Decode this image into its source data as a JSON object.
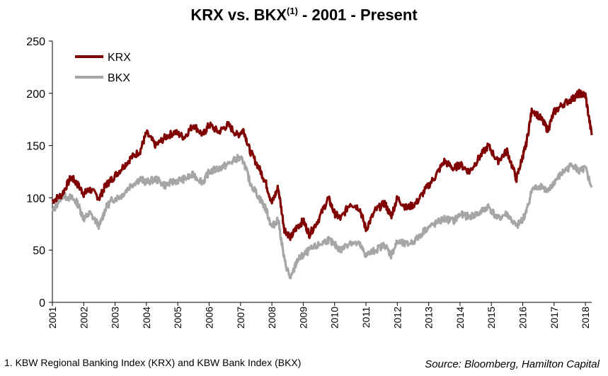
{
  "title": {
    "main": "KRX vs. BKX",
    "superscript": "(1)",
    "suffix": " - 2001 - Present"
  },
  "footnote": "1. KBW Regional Banking Index (KRX) and KBW Bank Index (BKX)",
  "source": "Source: Bloomberg, Hamilton Capital",
  "colors": {
    "KRX": "#800000",
    "BKX": "#a6a6a6",
    "axis": "#000000"
  },
  "chart_data": {
    "type": "line",
    "title": "KRX vs. BKX(1) - 2001 - Present",
    "xlabel": "",
    "ylabel": "",
    "ylim": [
      0,
      250
    ],
    "xlim": [
      2001,
      2018.2
    ],
    "y_ticks": [
      0,
      50,
      100,
      150,
      200,
      250
    ],
    "x_ticks": [
      "2001",
      "2002",
      "2003",
      "2004",
      "2005",
      "2006",
      "2007",
      "2008",
      "2009",
      "2010",
      "2011",
      "2012",
      "2013",
      "2014",
      "2015",
      "2016",
      "2017",
      "2018"
    ],
    "grid": false,
    "legend_position": "top-left",
    "series": [
      {
        "name": "KRX",
        "x": [
          2001.0,
          2001.3,
          2001.6,
          2001.8,
          2002.0,
          2002.2,
          2002.5,
          2002.7,
          2002.9,
          2003.2,
          2003.5,
          2003.8,
          2004.0,
          2004.3,
          2004.6,
          2004.9,
          2005.2,
          2005.5,
          2005.8,
          2006.0,
          2006.3,
          2006.6,
          2006.9,
          2007.1,
          2007.3,
          2007.6,
          2007.8,
          2008.0,
          2008.2,
          2008.4,
          2008.6,
          2008.8,
          2009.0,
          2009.2,
          2009.5,
          2009.8,
          2010.0,
          2010.2,
          2010.5,
          2010.8,
          2011.0,
          2011.3,
          2011.6,
          2011.8,
          2012.0,
          2012.3,
          2012.6,
          2012.9,
          2013.2,
          2013.5,
          2013.8,
          2014.0,
          2014.3,
          2014.6,
          2014.9,
          2015.2,
          2015.5,
          2015.8,
          2016.0,
          2016.1,
          2016.3,
          2016.6,
          2016.8,
          2017.0,
          2017.3,
          2017.6,
          2017.8,
          2018.0,
          2018.2
        ],
        "y": [
          97,
          103,
          120,
          113,
          104,
          108,
          100,
          112,
          118,
          128,
          138,
          145,
          162,
          150,
          158,
          163,
          158,
          170,
          160,
          170,
          163,
          170,
          160,
          165,
          145,
          128,
          115,
          95,
          110,
          70,
          62,
          72,
          78,
          65,
          80,
          100,
          85,
          80,
          95,
          90,
          70,
          88,
          95,
          82,
          100,
          90,
          95,
          108,
          120,
          135,
          128,
          132,
          125,
          138,
          150,
          135,
          145,
          118,
          140,
          150,
          185,
          175,
          165,
          182,
          190,
          195,
          200,
          198,
          160
        ]
      },
      {
        "name": "BKX",
        "x": [
          2001.0,
          2001.3,
          2001.6,
          2001.8,
          2002.0,
          2002.2,
          2002.5,
          2002.7,
          2002.9,
          2003.2,
          2003.5,
          2003.8,
          2004.0,
          2004.3,
          2004.6,
          2004.9,
          2005.2,
          2005.5,
          2005.8,
          2006.0,
          2006.3,
          2006.6,
          2006.9,
          2007.1,
          2007.3,
          2007.6,
          2007.8,
          2008.0,
          2008.2,
          2008.4,
          2008.6,
          2008.8,
          2009.0,
          2009.2,
          2009.5,
          2009.8,
          2010.0,
          2010.2,
          2010.5,
          2010.8,
          2011.0,
          2011.3,
          2011.6,
          2011.8,
          2012.0,
          2012.3,
          2012.6,
          2012.9,
          2013.2,
          2013.5,
          2013.8,
          2014.0,
          2014.3,
          2014.6,
          2014.9,
          2015.2,
          2015.5,
          2015.8,
          2016.0,
          2016.1,
          2016.3,
          2016.6,
          2016.8,
          2017.0,
          2017.3,
          2017.6,
          2017.8,
          2018.0,
          2018.2
        ],
        "y": [
          86,
          102,
          100,
          95,
          80,
          85,
          73,
          90,
          98,
          102,
          112,
          118,
          115,
          118,
          112,
          116,
          118,
          122,
          115,
          125,
          128,
          132,
          138,
          135,
          115,
          100,
          90,
          72,
          80,
          40,
          22,
          40,
          45,
          50,
          55,
          60,
          55,
          50,
          58,
          55,
          45,
          50,
          55,
          45,
          58,
          55,
          60,
          70,
          75,
          80,
          78,
          84,
          82,
          85,
          92,
          80,
          85,
          72,
          80,
          85,
          108,
          112,
          105,
          115,
          125,
          132,
          125,
          128,
          110
        ]
      }
    ]
  }
}
